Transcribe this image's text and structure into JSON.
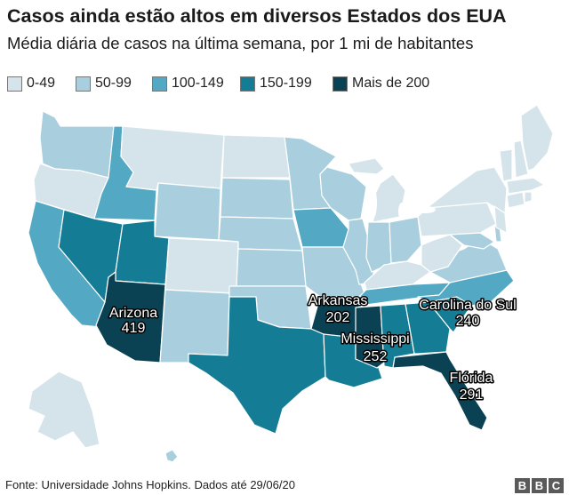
{
  "header": {
    "title": "Casos ainda estão altos em diversos Estados dos EUA",
    "subtitle": "Média diária de casos na última semana, por 1 mi de habitantes"
  },
  "legend": [
    {
      "label": "0-49",
      "color": "#d5e4ea"
    },
    {
      "label": "50-99",
      "color": "#a9cfdf"
    },
    {
      "label": "100-149",
      "color": "#53a8c4"
    },
    {
      "label": "150-199",
      "color": "#157c96"
    },
    {
      "label": "Mais de 200",
      "color": "#0b4253"
    }
  ],
  "callouts": [
    {
      "state": "Arizona",
      "value": "419"
    },
    {
      "state": "Arkansas",
      "value": "202"
    },
    {
      "state": "Carolina do Sul",
      "value": "240"
    },
    {
      "state": "Mississippi",
      "value": "252"
    },
    {
      "state": "Flórida",
      "value": "291"
    }
  ],
  "footer": {
    "source": "Fonte: Universidade Johns Hopkins. Dados até 29/06/20",
    "logo": [
      "B",
      "B",
      "C"
    ]
  }
}
